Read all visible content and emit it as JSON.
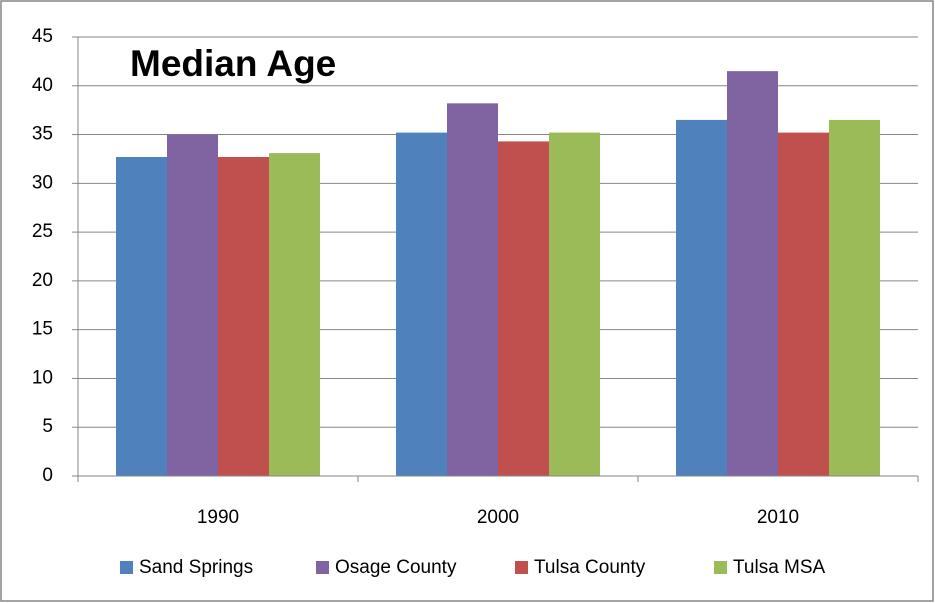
{
  "chart_data": {
    "type": "bar",
    "title": "Median Age",
    "categories": [
      "1990",
      "2000",
      "2010"
    ],
    "series": [
      {
        "name": "Sand Springs",
        "color": "#4f81bd",
        "values": [
          32.7,
          35.2,
          36.5
        ]
      },
      {
        "name": "Osage County",
        "color": "#8064a2",
        "values": [
          35.0,
          38.2,
          41.5
        ]
      },
      {
        "name": "Tulsa County",
        "color": "#c0504d",
        "values": [
          32.7,
          34.3,
          35.2
        ]
      },
      {
        "name": "Tulsa MSA",
        "color": "#9bbb59",
        "values": [
          33.1,
          35.2,
          36.5
        ]
      }
    ],
    "ylim": [
      0,
      45
    ],
    "yticks": [
      0,
      5,
      10,
      15,
      20,
      25,
      30,
      35,
      40,
      45
    ],
    "grid": true,
    "legend": "bottom"
  }
}
